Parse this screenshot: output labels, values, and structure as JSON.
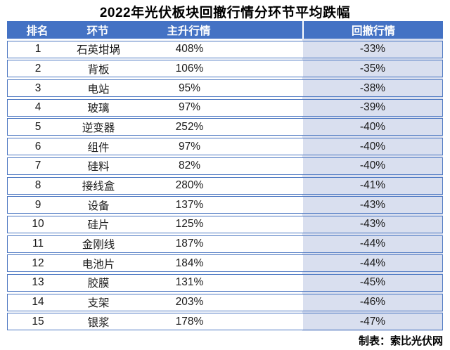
{
  "chart_data": {
    "type": "table",
    "title": "2022年光伏板块回撤行情分环节平均跌幅",
    "columns": [
      "排名",
      "环节",
      "主升行情",
      "回撤行情"
    ],
    "rows": [
      {
        "rank": "1",
        "segment": "石英坩埚",
        "rise_pct": "408%",
        "drawdown_pct": "-33%"
      },
      {
        "rank": "2",
        "segment": "背板",
        "rise_pct": "106%",
        "drawdown_pct": "-35%"
      },
      {
        "rank": "3",
        "segment": "电站",
        "rise_pct": "95%",
        "drawdown_pct": "-38%"
      },
      {
        "rank": "4",
        "segment": "玻璃",
        "rise_pct": "97%",
        "drawdown_pct": "-39%"
      },
      {
        "rank": "5",
        "segment": "逆变器",
        "rise_pct": "252%",
        "drawdown_pct": "-40%"
      },
      {
        "rank": "6",
        "segment": "组件",
        "rise_pct": "97%",
        "drawdown_pct": "-40%"
      },
      {
        "rank": "7",
        "segment": "硅料",
        "rise_pct": "82%",
        "drawdown_pct": "-40%"
      },
      {
        "rank": "8",
        "segment": "接线盒",
        "rise_pct": "280%",
        "drawdown_pct": "-41%"
      },
      {
        "rank": "9",
        "segment": "设备",
        "rise_pct": "137%",
        "drawdown_pct": "-43%"
      },
      {
        "rank": "10",
        "segment": "硅片",
        "rise_pct": "125%",
        "drawdown_pct": "-43%"
      },
      {
        "rank": "11",
        "segment": "金刚线",
        "rise_pct": "187%",
        "drawdown_pct": "-44%"
      },
      {
        "rank": "12",
        "segment": "电池片",
        "rise_pct": "184%",
        "drawdown_pct": "-44%"
      },
      {
        "rank": "13",
        "segment": "胶膜",
        "rise_pct": "131%",
        "drawdown_pct": "-45%"
      },
      {
        "rank": "14",
        "segment": "支架",
        "rise_pct": "203%",
        "drawdown_pct": "-46%"
      },
      {
        "rank": "15",
        "segment": "银浆",
        "rise_pct": "178%",
        "drawdown_pct": "-47%"
      }
    ],
    "footer": "制表：索比光伏网",
    "layout": {
      "legend": "none",
      "grid": "row-borders"
    }
  },
  "colors": {
    "header_bg": "#4472c4",
    "header_text": "#ffffff",
    "drawdown_column_bg": "#d9dfef",
    "row_border": "#4d78c2",
    "body_text": "#1a1a1a"
  }
}
